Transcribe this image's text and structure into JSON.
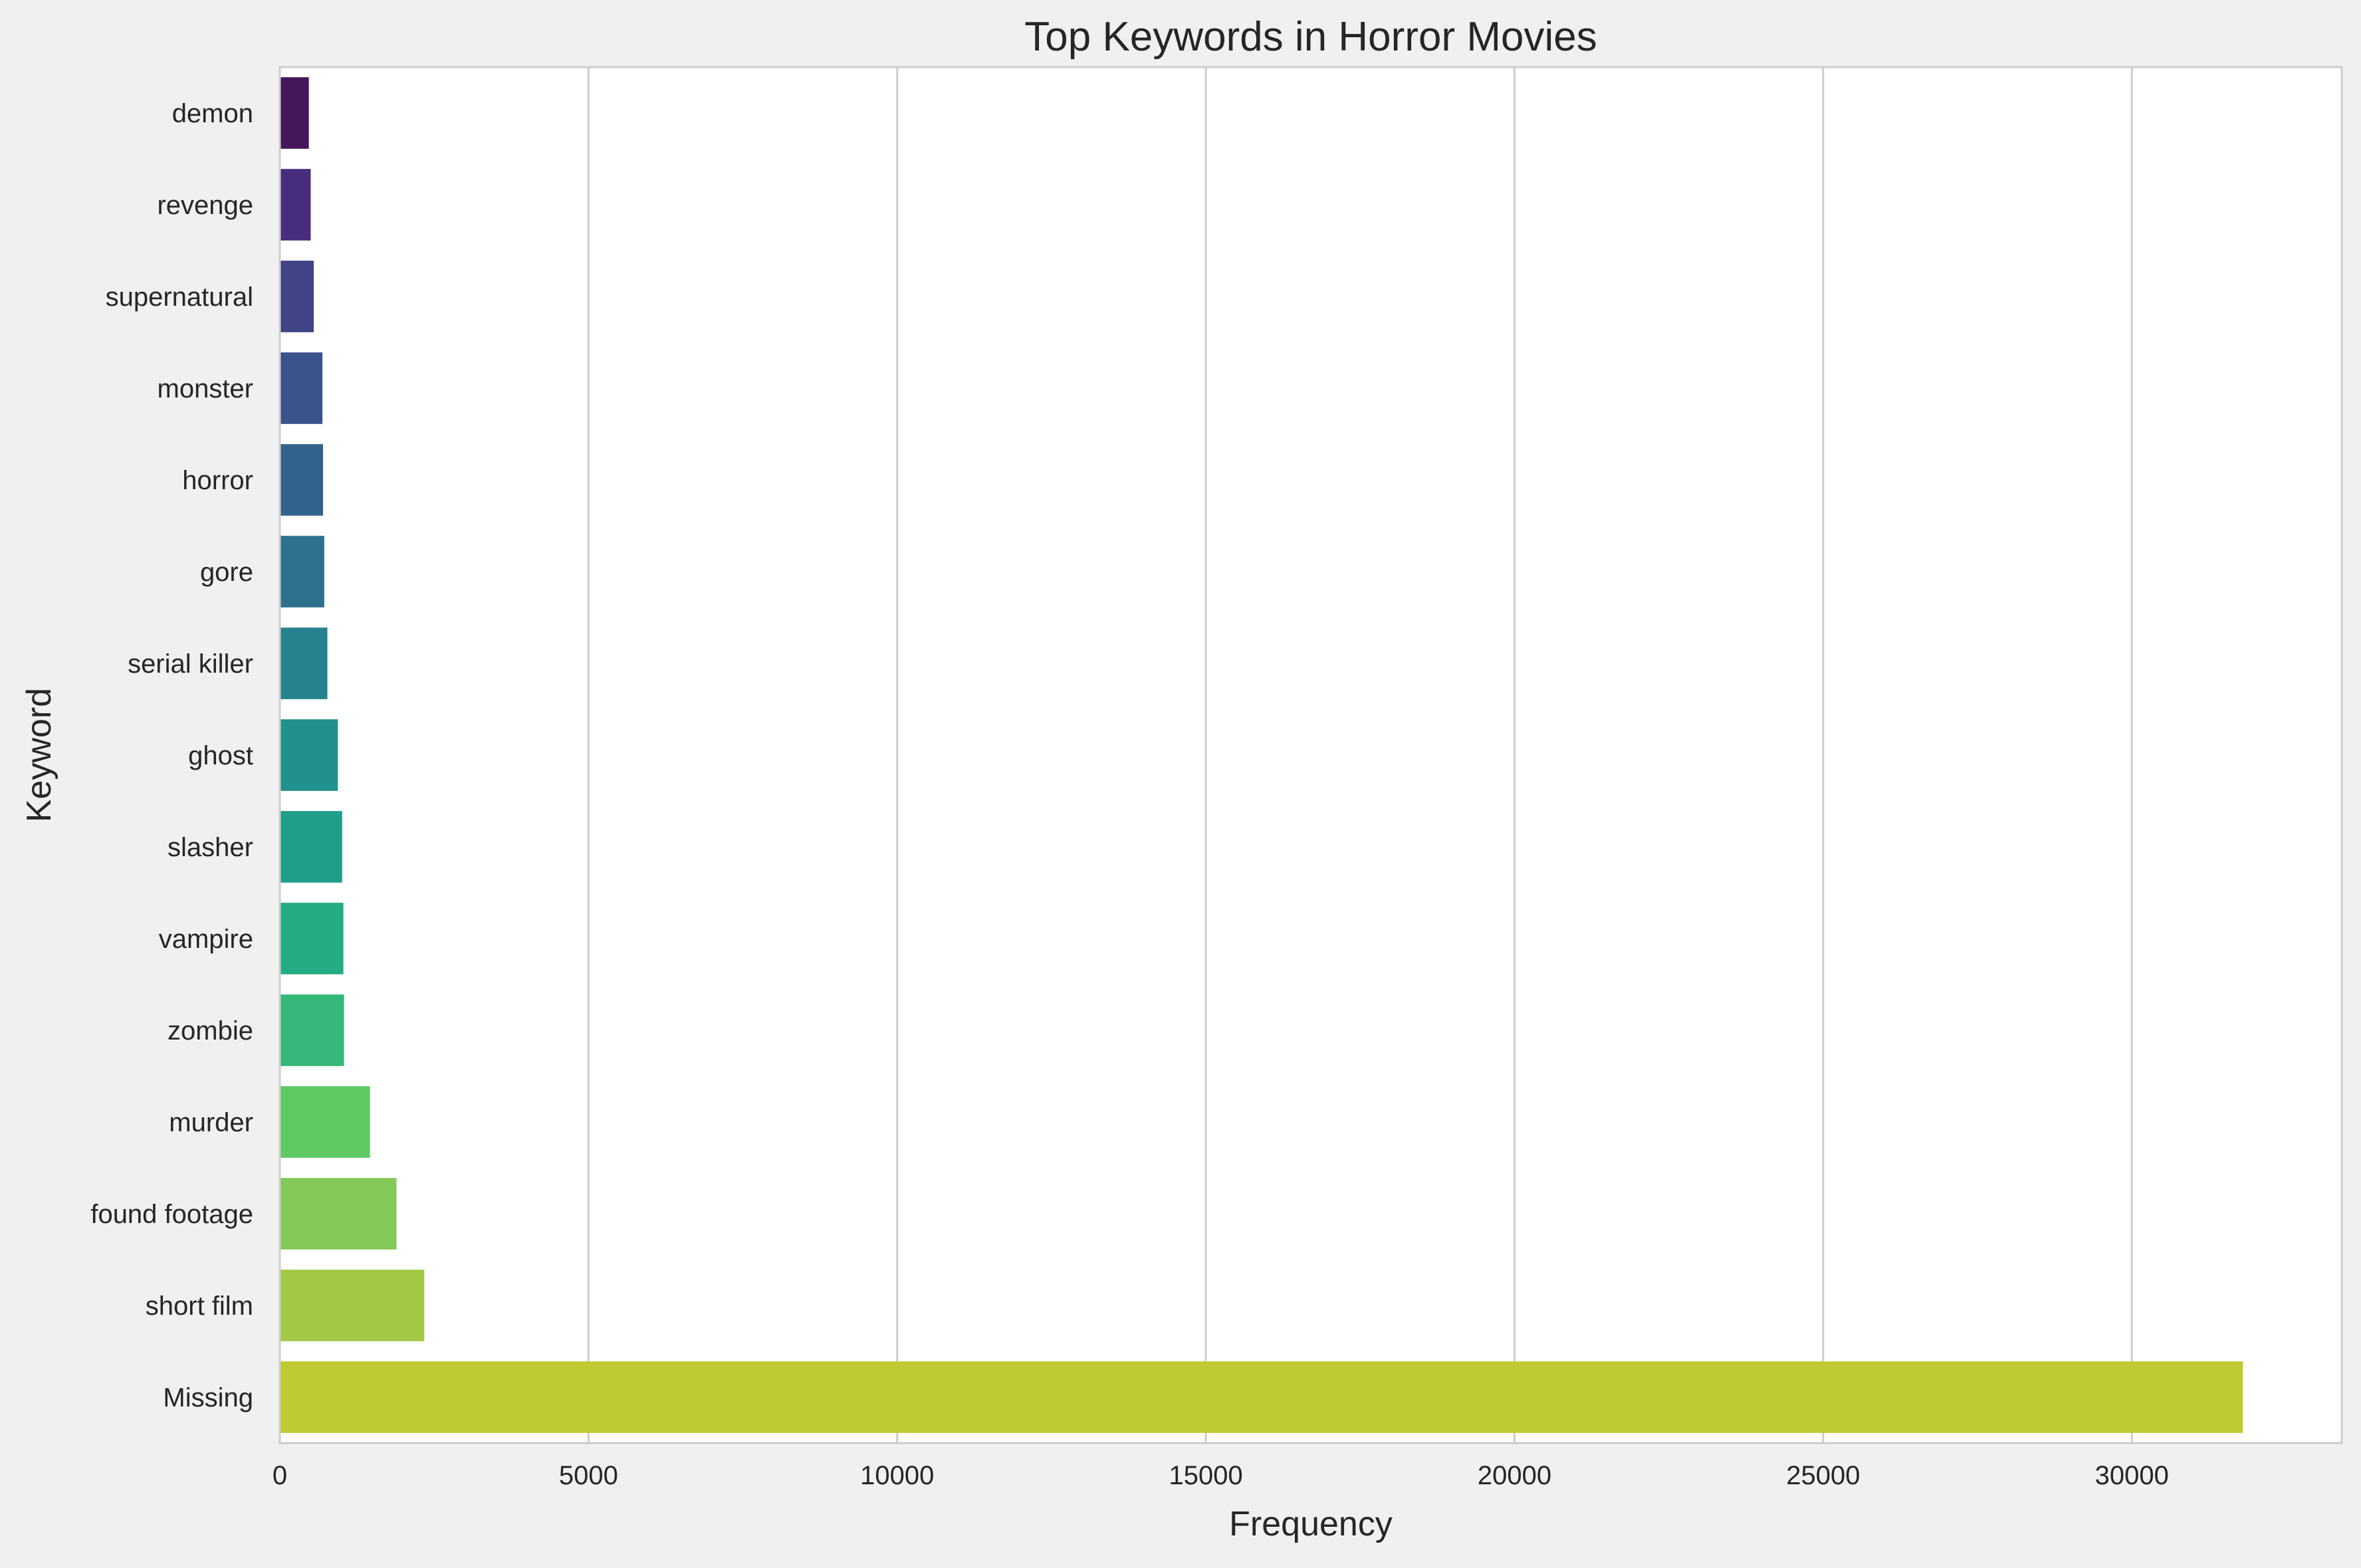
{
  "chart_data": {
    "type": "bar",
    "orientation": "horizontal",
    "title": "Top Keywords in Horror Movies",
    "xlabel": "Frequency",
    "ylabel": "Keyword",
    "xlim": [
      0,
      33400
    ],
    "xticks": [
      0,
      5000,
      10000,
      15000,
      20000,
      25000,
      30000
    ],
    "grid": "vertical gridlines on",
    "categories": [
      "demon",
      "revenge",
      "supernatural",
      "monster",
      "horror",
      "gore",
      "serial killer",
      "ghost",
      "slasher",
      "vampire",
      "zombie",
      "murder",
      "found footage",
      "short film",
      "Missing"
    ],
    "values": [
      470,
      500,
      550,
      690,
      700,
      720,
      770,
      940,
      1010,
      1030,
      1040,
      1460,
      1890,
      2340,
      31800
    ],
    "colors": [
      "#46165b",
      "#472d7b",
      "#414487",
      "#3b528b",
      "#33638d",
      "#2c728e",
      "#26828e",
      "#21918c",
      "#1f9e89",
      "#25ab82",
      "#35b779",
      "#5ec962",
      "#84c85a",
      "#a1c944",
      "#bfcb31"
    ]
  }
}
